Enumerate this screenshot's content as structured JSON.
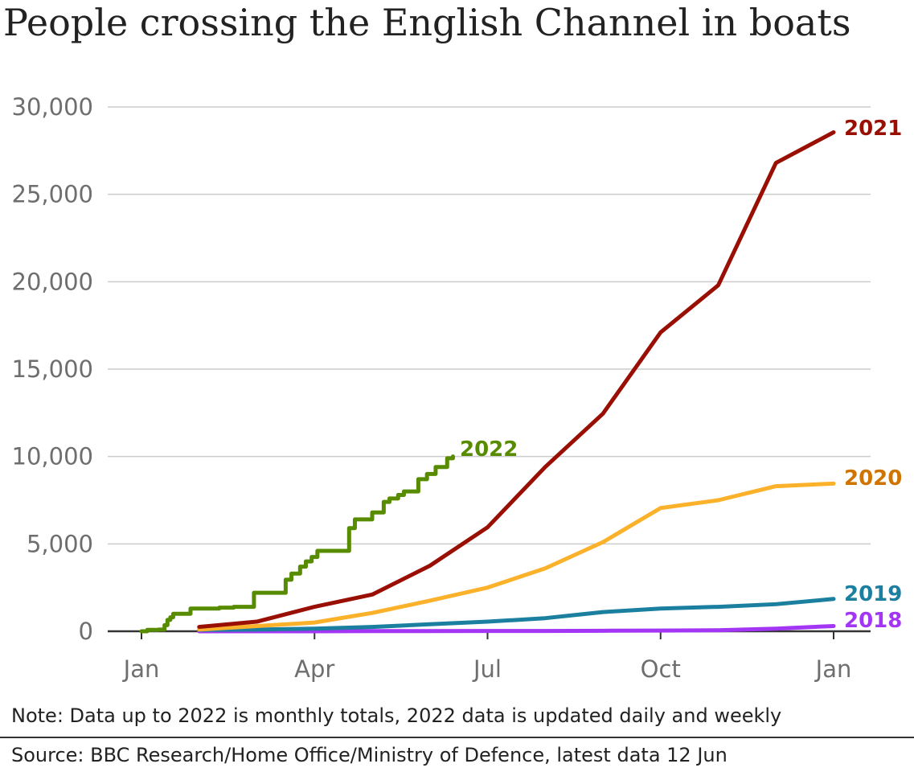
{
  "chart_data": {
    "type": "line",
    "title": "People crossing the English Channel in boats",
    "xlabel": "",
    "ylabel": "",
    "ylim": [
      0,
      30000
    ],
    "yticks": [
      0,
      5000,
      10000,
      15000,
      20000,
      25000,
      30000
    ],
    "ytick_labels": [
      "0",
      "5,000",
      "10,000",
      "15,000",
      "20,000",
      "25,000",
      "30,000"
    ],
    "xlim": [
      "Jan",
      "Jan"
    ],
    "xticks": [
      0,
      3,
      6,
      9,
      12
    ],
    "xtick_labels": [
      "Jan",
      "Apr",
      "Jul",
      "Oct",
      "Jan"
    ],
    "grid": true,
    "legend": "inline labels at line ends",
    "series": [
      {
        "name": "2018",
        "color": "#a335f5",
        "x": [
          1,
          2,
          3,
          4,
          5,
          6,
          7,
          8,
          9,
          10,
          11,
          12
        ],
        "y": [
          0,
          0,
          0,
          10,
          10,
          20,
          20,
          30,
          40,
          60,
          150,
          300
        ]
      },
      {
        "name": "2019",
        "color": "#1b7fa0",
        "x": [
          1,
          2,
          3,
          4,
          5,
          6,
          7,
          8,
          9,
          10,
          11,
          12
        ],
        "y": [
          80,
          100,
          150,
          250,
          400,
          550,
          750,
          1100,
          1300,
          1400,
          1550,
          1850
        ]
      },
      {
        "name": "2020",
        "color": "#fbb12a",
        "x": [
          1,
          2,
          3,
          4,
          5,
          6,
          7,
          8,
          9,
          10,
          11,
          12
        ],
        "y": [
          100,
          300,
          500,
          1050,
          1750,
          2500,
          3600,
          5100,
          7050,
          7500,
          8300,
          8450
        ]
      },
      {
        "name": "2021",
        "color": "#990f04",
        "x": [
          1,
          2,
          3,
          4,
          5,
          6,
          7,
          8,
          9,
          10,
          11,
          12
        ],
        "y": [
          250,
          550,
          1400,
          2100,
          3750,
          5950,
          9400,
          12450,
          17100,
          19800,
          26800,
          28550
        ]
      },
      {
        "name": "2022",
        "color": "#588c00",
        "step": true,
        "x": [
          0.0,
          0.1,
          0.3,
          0.4,
          0.45,
          0.5,
          0.55,
          0.7,
          0.85,
          1.3,
          1.35,
          1.5,
          1.6,
          1.8,
          1.95,
          2.35,
          2.5,
          2.6,
          2.75,
          2.85,
          2.95,
          3.05,
          3.5,
          3.6,
          3.7,
          4.0,
          4.1,
          4.2,
          4.3,
          4.45,
          4.55,
          4.8,
          4.95,
          5.1,
          5.3,
          5.4
        ],
        "y": [
          0,
          80,
          100,
          350,
          650,
          800,
          1000,
          1000,
          1300,
          1300,
          1350,
          1350,
          1400,
          1400,
          2200,
          2200,
          2950,
          3300,
          3700,
          4000,
          4250,
          4600,
          4600,
          5900,
          6400,
          6800,
          6800,
          7400,
          7600,
          7800,
          8000,
          8700,
          9000,
          9400,
          9900,
          10000
        ]
      }
    ],
    "annotations": [
      "Note: Data up to 2022 is monthly totals, 2022 data is updated daily and weekly",
      "Source: BBC Research/Home Office/Ministry of Defence, latest data 12 Jun"
    ]
  },
  "colors": {
    "grid": "#cccccc",
    "baseline": "#333333",
    "tick_text": "#6e6e6e",
    "label_2021": "#990f04",
    "label_2020": "#d07400",
    "label_2019": "#1b7fa0",
    "label_2018": "#a335f5",
    "label_2022": "#588c00"
  },
  "labels": {
    "2021": "2021",
    "2020": "2020",
    "2019": "2019",
    "2018": "2018",
    "2022": "2022"
  }
}
